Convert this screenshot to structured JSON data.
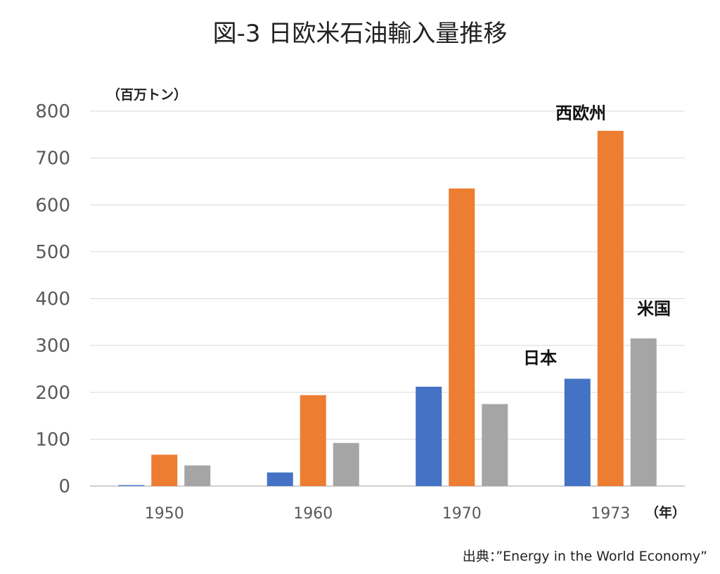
{
  "chart_data": {
    "type": "bar",
    "title": "図-3 日欧米石油輸入量推移",
    "y_unit_label": "（百万トン）",
    "x_unit_label": "（年）",
    "categories": [
      "1950",
      "1960",
      "1970",
      "1973"
    ],
    "series": [
      {
        "name": "日本",
        "color": "#4472c4",
        "values": [
          2,
          29,
          212,
          229
        ]
      },
      {
        "name": "西欧州",
        "color": "#ed7d31",
        "values": [
          67,
          194,
          635,
          758
        ]
      },
      {
        "name": "米国",
        "color": "#a5a5a5",
        "values": [
          44,
          92,
          175,
          315
        ]
      }
    ],
    "ylim": [
      0,
      800
    ],
    "y_ticks": [
      "0",
      "100",
      "200",
      "300",
      "400",
      "500",
      "600",
      "700",
      "800"
    ],
    "grid": true,
    "source": "出典：”Energy in the World Economy”"
  }
}
